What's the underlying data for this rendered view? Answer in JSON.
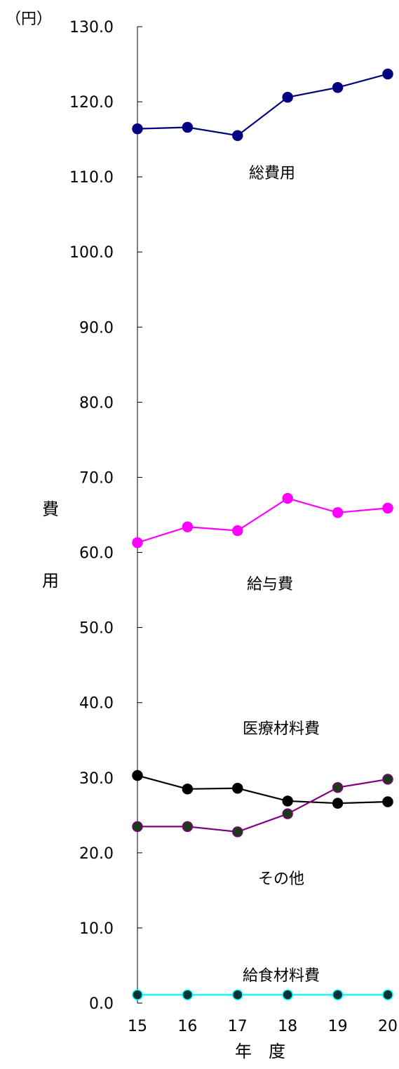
{
  "chart_data": {
    "type": "line",
    "unit_label": "（円）",
    "ylabel": "費用",
    "xlabel": "年　度",
    "ylim": [
      0,
      130
    ],
    "ytick_step": 10,
    "ytick_labels": [
      "0.0",
      "10.0",
      "20.0",
      "30.0",
      "40.0",
      "50.0",
      "60.0",
      "70.0",
      "80.0",
      "90.0",
      "100.0",
      "110.0",
      "120.0",
      "130.0"
    ],
    "categories": [
      "15",
      "16",
      "17",
      "18",
      "19",
      "20"
    ],
    "grid": false,
    "legend": "none",
    "series": [
      {
        "name": "総費用",
        "values": [
          116.4,
          116.6,
          115.5,
          120.6,
          121.9,
          123.7
        ],
        "color": "#000080",
        "marker_fill": "#000080"
      },
      {
        "name": "給与費",
        "values": [
          61.3,
          63.4,
          62.9,
          67.2,
          65.3,
          65.9
        ],
        "color": "#ff00ff",
        "marker_fill": "#ff00ff"
      },
      {
        "name": "医療材料費",
        "values": [
          30.3,
          28.5,
          28.6,
          26.9,
          26.6,
          26.8
        ],
        "color": "#000000",
        "marker_fill": "#000000"
      },
      {
        "name": "その他",
        "values": [
          23.5,
          23.5,
          22.8,
          25.2,
          28.7,
          29.8
        ],
        "color": "#800080",
        "marker_fill": "#1a3a1a"
      },
      {
        "name": "給食材料費",
        "values": [
          1.1,
          1.1,
          1.1,
          1.1,
          1.1,
          1.1
        ],
        "color": "#00ffff",
        "marker_fill": "#003333"
      }
    ]
  }
}
